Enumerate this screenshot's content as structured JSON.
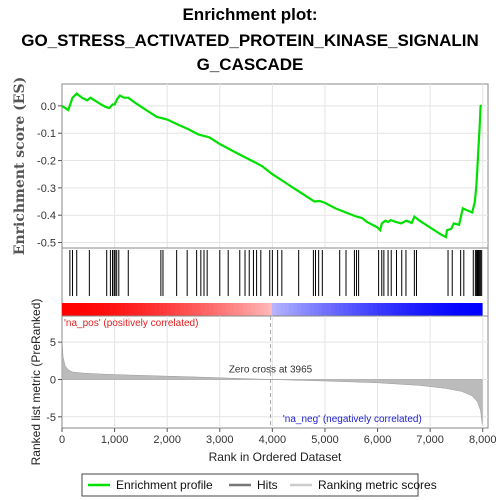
{
  "chart_data": {
    "type": "line",
    "title_lines": [
      "Enrichment plot:",
      "GO_STRESS_ACTIVATED_PROTEIN_KINASE_SIGNALIN",
      "G_CASCADE"
    ],
    "es_panel": {
      "ylabel": "Enrichment score (ES)",
      "ylim": [
        -0.52,
        0.08
      ],
      "yticks": [
        0.0,
        -0.1,
        -0.2,
        -0.3,
        -0.4,
        -0.5
      ],
      "ytick_labels": [
        "0.0",
        "-0.1",
        "-0.2",
        "-0.3",
        "-0.4",
        "-0.5"
      ],
      "series_name": "Enrichment profile",
      "color": "#00e000",
      "points": [
        [
          0,
          0.0
        ],
        [
          120,
          -0.015
        ],
        [
          200,
          0.03
        ],
        [
          280,
          0.045
        ],
        [
          380,
          0.03
        ],
        [
          480,
          0.02
        ],
        [
          540,
          0.03
        ],
        [
          620,
          0.02
        ],
        [
          720,
          0.008
        ],
        [
          820,
          -0.003
        ],
        [
          900,
          -0.008
        ],
        [
          960,
          0.005
        ],
        [
          1000,
          0.005
        ],
        [
          1050,
          0.025
        ],
        [
          1100,
          0.038
        ],
        [
          1180,
          0.03
        ],
        [
          1260,
          0.03
        ],
        [
          1400,
          0.01
        ],
        [
          1600,
          -0.015
        ],
        [
          1800,
          -0.04
        ],
        [
          1900,
          -0.045
        ],
        [
          2000,
          -0.05
        ],
        [
          2200,
          -0.068
        ],
        [
          2400,
          -0.085
        ],
        [
          2600,
          -0.105
        ],
        [
          2800,
          -0.115
        ],
        [
          3000,
          -0.14
        ],
        [
          3200,
          -0.16
        ],
        [
          3400,
          -0.18
        ],
        [
          3600,
          -0.2
        ],
        [
          3800,
          -0.22
        ],
        [
          4000,
          -0.25
        ],
        [
          4200,
          -0.275
        ],
        [
          4400,
          -0.3
        ],
        [
          4600,
          -0.325
        ],
        [
          4800,
          -0.35
        ],
        [
          4900,
          -0.348
        ],
        [
          5000,
          -0.355
        ],
        [
          5200,
          -0.375
        ],
        [
          5400,
          -0.39
        ],
        [
          5600,
          -0.405
        ],
        [
          5700,
          -0.41
        ],
        [
          5800,
          -0.425
        ],
        [
          6000,
          -0.445
        ],
        [
          6050,
          -0.455
        ],
        [
          6080,
          -0.43
        ],
        [
          6150,
          -0.42
        ],
        [
          6200,
          -0.425
        ],
        [
          6250,
          -0.418
        ],
        [
          6350,
          -0.425
        ],
        [
          6450,
          -0.43
        ],
        [
          6550,
          -0.42
        ],
        [
          6650,
          -0.428
        ],
        [
          6700,
          -0.405
        ],
        [
          6800,
          -0.42
        ],
        [
          7000,
          -0.445
        ],
        [
          7200,
          -0.47
        ],
        [
          7300,
          -0.48
        ],
        [
          7320,
          -0.455
        ],
        [
          7400,
          -0.45
        ],
        [
          7450,
          -0.43
        ],
        [
          7550,
          -0.435
        ],
        [
          7620,
          -0.375
        ],
        [
          7800,
          -0.39
        ],
        [
          7850,
          -0.35
        ],
        [
          7880,
          -0.29
        ],
        [
          7900,
          -0.22
        ],
        [
          7920,
          -0.15
        ],
        [
          7940,
          -0.08
        ],
        [
          7960,
          0.0
        ],
        [
          7980,
          0.002
        ]
      ]
    },
    "hits": {
      "series_name": "Hits",
      "positions": [
        150,
        200,
        280,
        520,
        850,
        920,
        960,
        990,
        1010,
        1040,
        1080,
        1260,
        1880,
        1920,
        2180,
        2380,
        2560,
        2640,
        2700,
        2760,
        3000,
        3160,
        3380,
        3480,
        3560,
        3640,
        3700,
        3780,
        3950,
        4000,
        4100,
        4180,
        4500,
        4780,
        4820,
        4880,
        4950,
        5280,
        5400,
        5560,
        5600,
        5640,
        6020,
        6080,
        6120,
        6200,
        6260,
        6360,
        6460,
        6540,
        6700,
        6740,
        7340,
        7420,
        7580,
        7640,
        7820,
        7860,
        7880,
        7900,
        7920,
        7940,
        7960,
        7980
      ]
    },
    "rank_bar": {
      "zero_cross": 3965,
      "colors": [
        "#ff0000",
        "#ffffff",
        "#0000ff"
      ]
    },
    "metric_panel": {
      "ylabel": "Ranked list metric (PreRanked)",
      "ylim": [
        -6.5,
        8.5
      ],
      "yticks": [
        5,
        0,
        -5
      ],
      "ytick_labels": [
        "5",
        "0",
        "-5"
      ],
      "series_name": "Ranking metric scores",
      "zero_cross_label": "Zero cross at 3965",
      "pos_label": "'na_pos' (positively correlated)",
      "neg_label": "'na_neg' (negatively correlated)",
      "profile": [
        [
          0,
          5.5
        ],
        [
          20,
          3.0
        ],
        [
          60,
          1.8
        ],
        [
          120,
          1.3
        ],
        [
          200,
          1.0
        ],
        [
          400,
          0.85
        ],
        [
          800,
          0.7
        ],
        [
          1500,
          0.55
        ],
        [
          2500,
          0.35
        ],
        [
          3965,
          0.0
        ],
        [
          5000,
          -0.2
        ],
        [
          6000,
          -0.45
        ],
        [
          6800,
          -0.8
        ],
        [
          7300,
          -1.2
        ],
        [
          7600,
          -1.6
        ],
        [
          7800,
          -2.2
        ],
        [
          7900,
          -3.0
        ],
        [
          7960,
          -4.2
        ],
        [
          7990,
          -6.0
        ]
      ]
    },
    "xaxis": {
      "label": "Rank in Ordered Dataset",
      "xlim": [
        0,
        8100
      ],
      "ticks": [
        0,
        1000,
        2000,
        3000,
        4000,
        5000,
        6000,
        7000,
        8000
      ],
      "tick_labels": [
        "0",
        "1,000",
        "2,000",
        "3,000",
        "4,000",
        "5,000",
        "6,000",
        "7,000",
        "8,000"
      ],
      "max_rank": 7990
    },
    "legend": [
      "Enrichment profile",
      "Hits",
      "Ranking metric scores"
    ],
    "legend_placement": "bottom"
  }
}
